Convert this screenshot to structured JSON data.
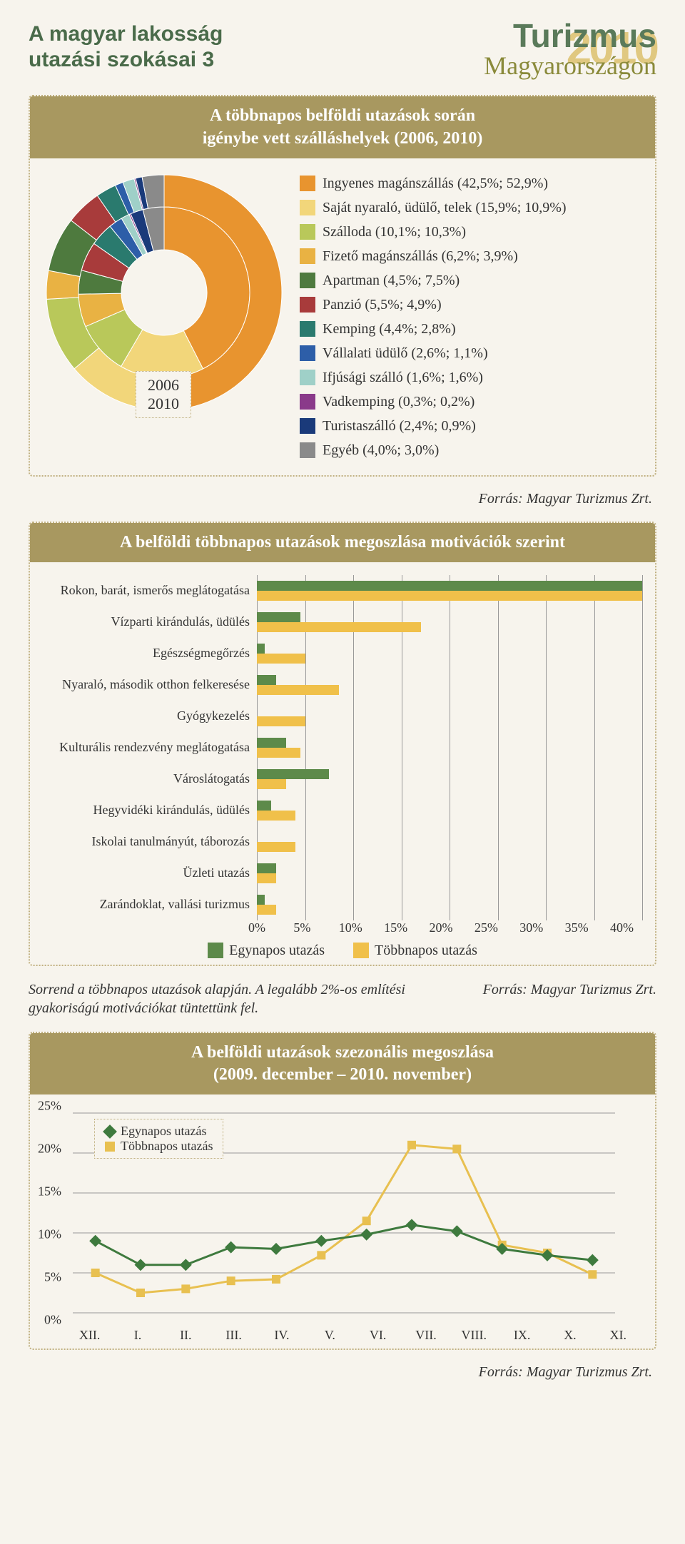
{
  "header": {
    "title_left_l1": "A magyar lakosság",
    "title_left_l2": "utazási szokásai 3",
    "title_right_main": "Turizmus",
    "title_right_year": "2010",
    "title_right_sub": "Magyarországon"
  },
  "panel1": {
    "title": "A többnapos belföldi utazások során\nigénybe vett szálláshelyek (2006, 2010)",
    "donut_inner_labels": [
      "2006",
      "2010"
    ],
    "legend": [
      {
        "color": "#e8942f",
        "label": "Ingyenes magánszállás (42,5%; 52,9%)",
        "v2006": 42.5,
        "v2010": 52.9
      },
      {
        "color": "#f2d67a",
        "label": "Saját nyaraló, üdülő, telek (15,9%; 10,9%)",
        "v2006": 15.9,
        "v2010": 10.9
      },
      {
        "color": "#b9c85a",
        "label": "Szálloda (10,1%; 10,3%)",
        "v2006": 10.1,
        "v2010": 10.3
      },
      {
        "color": "#e9b243",
        "label": "Fizető magánszállás (6,2%; 3,9%)",
        "v2006": 6.2,
        "v2010": 3.9
      },
      {
        "color": "#4e7a3e",
        "label": "Apartman (4,5%; 7,5%)",
        "v2006": 4.5,
        "v2010": 7.5
      },
      {
        "color": "#a83b3b",
        "label": "Panzió (5,5%; 4,9%)",
        "v2006": 5.5,
        "v2010": 4.9
      },
      {
        "color": "#2a7a6e",
        "label": "Kemping (4,4%; 2,8%)",
        "v2006": 4.4,
        "v2010": 2.8
      },
      {
        "color": "#2d5ea8",
        "label": "Vállalati üdülő (2,6%; 1,1%)",
        "v2006": 2.6,
        "v2010": 1.1
      },
      {
        "color": "#9fd0c8",
        "label": "Ifjúsági szálló (1,6%; 1,6%)",
        "v2006": 1.6,
        "v2010": 1.6
      },
      {
        "color": "#8a3a8a",
        "label": "Vadkemping (0,3%; 0,2%)",
        "v2006": 0.3,
        "v2010": 0.2
      },
      {
        "color": "#1a3a7a",
        "label": "Turistaszálló (2,4%; 0,9%)",
        "v2006": 2.4,
        "v2010": 0.9
      },
      {
        "color": "#8a8a8a",
        "label": "Egyéb (4,0%; 3,0%)",
        "v2006": 4.0,
        "v2010": 3.0
      }
    ],
    "source": "Forrás: Magyar Turizmus Zrt."
  },
  "panel2": {
    "title": "A belföldi többnapos utazások megoszlása motivációk szerint",
    "xmax": 40,
    "xticks": [
      "0%",
      "5%",
      "10%",
      "15%",
      "20%",
      "25%",
      "30%",
      "35%",
      "40%"
    ],
    "colors": {
      "single": "#5d8a4a",
      "multi": "#f0c04a"
    },
    "series_labels": {
      "single": "Egynapos utazás",
      "multi": "Többnapos utazás"
    },
    "rows": [
      {
        "label": "Rokon, barát, ismerős meglátogatása",
        "single": 40,
        "multi": 40
      },
      {
        "label": "Vízparti kirándulás, üdülés",
        "single": 4.5,
        "multi": 17
      },
      {
        "label": "Egészségmegőrzés",
        "single": 0.8,
        "multi": 5
      },
      {
        "label": "Nyaraló, második otthon felkeresése",
        "single": 2,
        "multi": 8.5
      },
      {
        "label": "Gyógykezelés",
        "single": 0,
        "multi": 5
      },
      {
        "label": "Kulturális rendezvény meglátogatása",
        "single": 3,
        "multi": 4.5
      },
      {
        "label": "Városlátogatás",
        "single": 7.5,
        "multi": 3
      },
      {
        "label": "Hegyvidéki kirándulás, üdülés",
        "single": 1.5,
        "multi": 4
      },
      {
        "label": "Iskolai tanulmányút, táborozás",
        "single": 0,
        "multi": 4
      },
      {
        "label": "Üzleti utazás",
        "single": 2,
        "multi": 2
      },
      {
        "label": "Zarándoklat, vallási turizmus",
        "single": 0.8,
        "multi": 2
      }
    ],
    "footnote": "Sorrend a többnapos utazások alapján. A legalább 2%-os említési gyakoriságú motivációkat tüntettünk fel.",
    "source": "Forrás: Magyar Turizmus Zrt."
  },
  "panel3": {
    "title": "A belföldi utazások szezonális megoszlása\n(2009. december – 2010. november)",
    "ymax": 25,
    "yticks": [
      0,
      5,
      10,
      15,
      20,
      25
    ],
    "xlabels": [
      "XII.",
      "I.",
      "II.",
      "III.",
      "IV.",
      "V.",
      "VI.",
      "VII.",
      "VIII.",
      "IX.",
      "X.",
      "XI."
    ],
    "colors": {
      "single": "#3e7a3e",
      "multi": "#e8c050"
    },
    "series_labels": {
      "single": "Egynapos utazás",
      "multi": "Többnapos utazás"
    },
    "single": [
      9,
      6,
      6,
      8.2,
      8,
      9,
      9.8,
      11,
      10.2,
      8,
      7.2,
      6.6
    ],
    "multi": [
      5,
      2.5,
      3,
      4,
      4.2,
      7.2,
      11.5,
      21,
      20.5,
      8.5,
      7.5,
      4.8
    ],
    "source": "Forrás: Magyar Turizmus Zrt."
  }
}
